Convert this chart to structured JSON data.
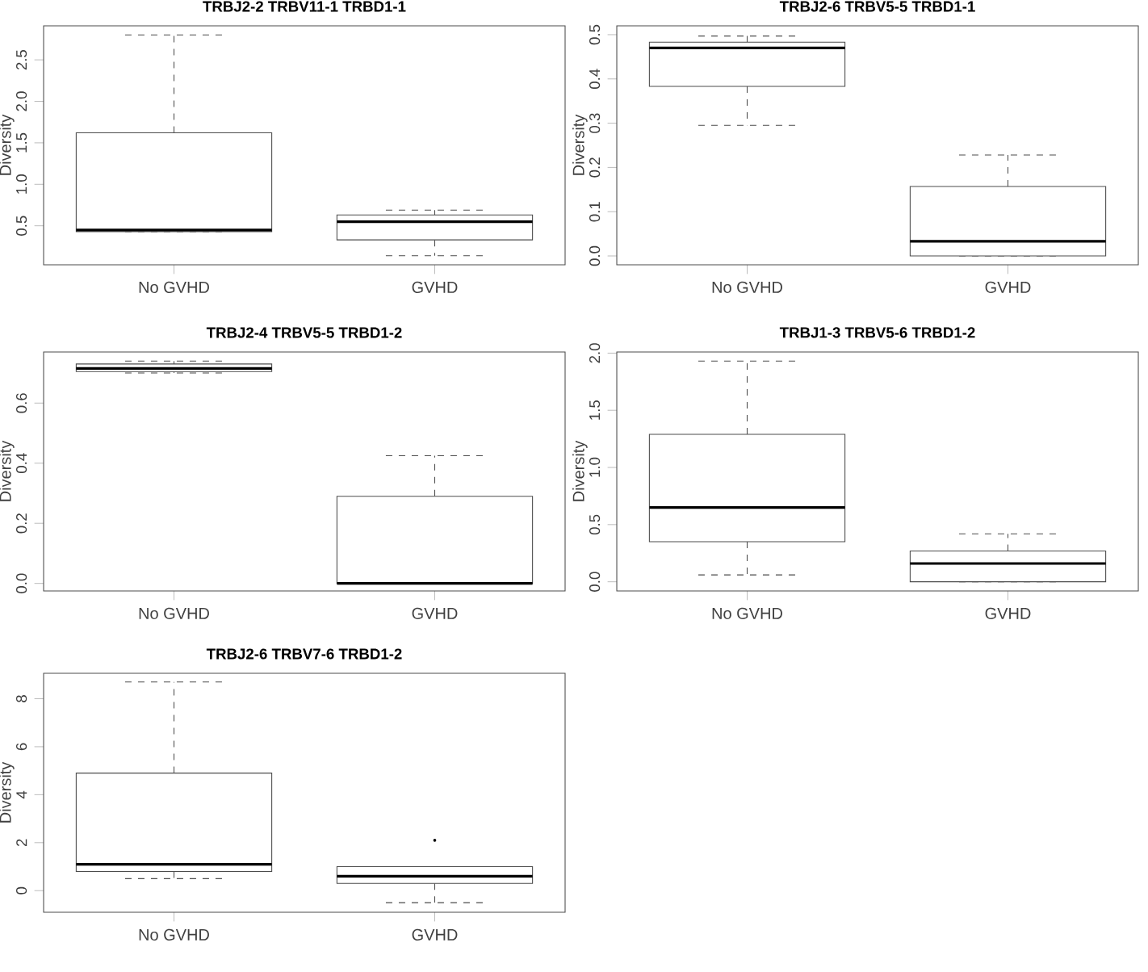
{
  "chart_data": [
    {
      "type": "box",
      "title": "TRBJ2-2 TRBV11-1 TRBD1-1",
      "ylabel": "Diversity",
      "categories": [
        "No GVHD",
        "GVHD"
      ],
      "boxes": [
        {
          "low": 0.43,
          "q1": 0.43,
          "median": 0.45,
          "q3": 1.62,
          "high": 2.8
        },
        {
          "low": 0.14,
          "q1": 0.33,
          "median": 0.55,
          "q3": 0.63,
          "high": 0.69
        }
      ],
      "ylim": [
        0.03,
        2.91
      ],
      "yticks": [
        {
          "value": 0.5,
          "label": "0.5"
        },
        {
          "value": 1,
          "label": "1.0"
        },
        {
          "value": 1.5,
          "label": "1.5"
        },
        {
          "value": 2,
          "label": "2.0"
        },
        {
          "value": 2.5,
          "label": "2.5"
        }
      ]
    },
    {
      "type": "box",
      "title": "TRBJ2-6 TRBV5-5 TRBD1-1",
      "ylabel": "Diversity",
      "categories": [
        "No GVHD",
        "GVHD"
      ],
      "boxes": [
        {
          "low": 0.295,
          "q1": 0.383,
          "median": 0.47,
          "q3": 0.483,
          "high": 0.497
        },
        {
          "low": 0.0,
          "q1": 0.0,
          "median": 0.033,
          "q3": 0.157,
          "high": 0.228
        }
      ],
      "ylim": [
        -0.02,
        0.52
      ],
      "yticks": [
        {
          "value": 0,
          "label": "0.0"
        },
        {
          "value": 0.1,
          "label": "0.1"
        },
        {
          "value": 0.2,
          "label": "0.2"
        },
        {
          "value": 0.3,
          "label": "0.3"
        },
        {
          "value": 0.4,
          "label": "0.4"
        },
        {
          "value": 0.5,
          "label": "0.5"
        }
      ]
    },
    {
      "type": "box",
      "title": "TRBJ2-4 TRBV5-5 TRBD1-2",
      "ylabel": "Diversity",
      "categories": [
        "No GVHD",
        "GVHD"
      ],
      "boxes": [
        {
          "low": 0.7,
          "q1": 0.705,
          "median": 0.715,
          "q3": 0.73,
          "high": 0.74
        },
        {
          "low": 0.0,
          "q1": 0.0,
          "median": 0.0,
          "q3": 0.29,
          "high": 0.425
        }
      ],
      "ylim": [
        -0.025,
        0.77
      ],
      "yticks": [
        {
          "value": 0,
          "label": "0.0"
        },
        {
          "value": 0.2,
          "label": "0.2"
        },
        {
          "value": 0.4,
          "label": "0.4"
        },
        {
          "value": 0.6,
          "label": "0.6"
        }
      ]
    },
    {
      "type": "box",
      "title": "TRBJ1-3 TRBV5-6 TRBD1-2",
      "ylabel": "Diversity",
      "categories": [
        "No GVHD",
        "GVHD"
      ],
      "boxes": [
        {
          "low": 0.06,
          "q1": 0.35,
          "median": 0.65,
          "q3": 1.29,
          "high": 1.93
        },
        {
          "low": 0.0,
          "q1": 0.0,
          "median": 0.16,
          "q3": 0.27,
          "high": 0.42
        }
      ],
      "ylim": [
        -0.08,
        2.01
      ],
      "yticks": [
        {
          "value": 0,
          "label": "0.0"
        },
        {
          "value": 0.5,
          "label": "0.5"
        },
        {
          "value": 1,
          "label": "1.0"
        },
        {
          "value": 1.5,
          "label": "1.5"
        },
        {
          "value": 2,
          "label": "2.0"
        }
      ]
    },
    {
      "type": "box",
      "title": "TRBJ2-6 TRBV7-6 TRBD1-2",
      "ylabel": "Diversity",
      "categories": [
        "No GVHD",
        "GVHD"
      ],
      "boxes": [
        {
          "low": 0.5,
          "q1": 0.8,
          "median": 1.1,
          "q3": 4.9,
          "high": 8.7
        },
        {
          "low": -0.5,
          "q1": 0.3,
          "median": 0.6,
          "q3": 1.0,
          "high": 1.0,
          "outliers": [
            2.1
          ]
        }
      ],
      "ylim": [
        -0.9,
        9.06
      ],
      "yticks": [
        0,
        2,
        4,
        6,
        8
      ]
    }
  ]
}
